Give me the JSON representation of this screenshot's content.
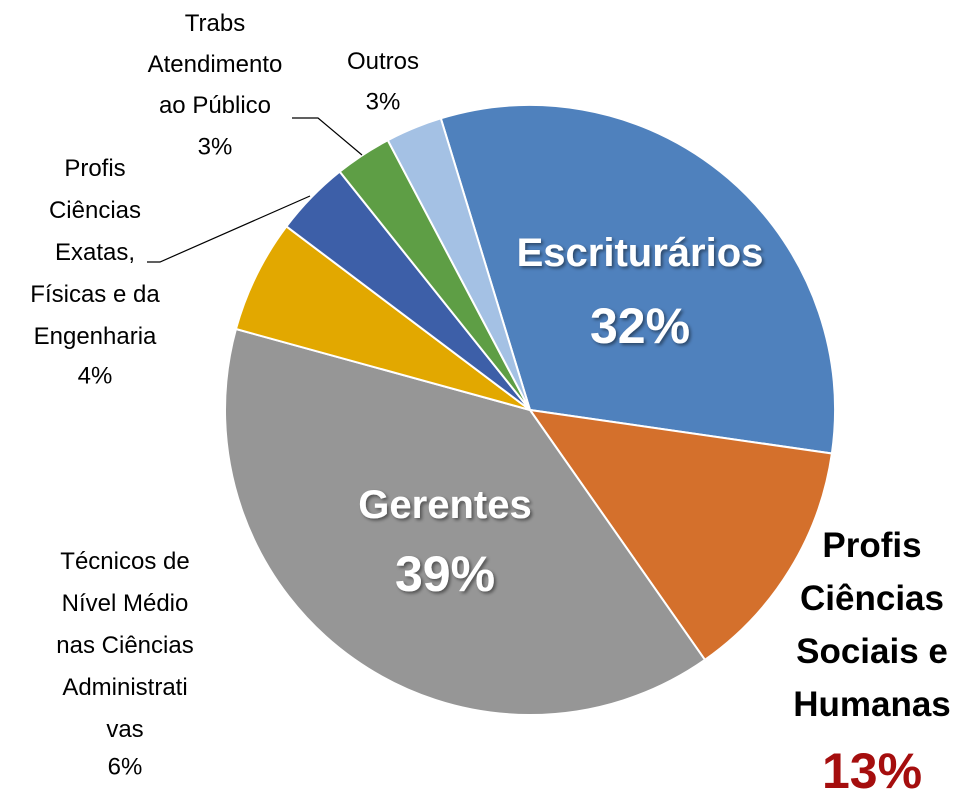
{
  "chart_data": {
    "type": "pie",
    "categories": [
      "Escriturários",
      "Profis\nCiências\nSociais e\nHumanas",
      "Gerentes",
      "Técnicos de\nNível Médio\nnas Ciências\nAdministrati\nvas",
      "Profis\nCiências\nExatas,\nFísicas e da\nEngenharia",
      "Trabs\nAtendimento\nao Público",
      "Outros"
    ],
    "values": [
      32,
      13,
      39,
      6,
      4,
      3,
      3
    ],
    "value_labels": [
      "32%",
      "13%",
      "39%",
      "6%",
      "4%",
      "3%",
      "3%"
    ],
    "colors": [
      "#4f81bd",
      "#d4702c",
      "#969696",
      "#e2a800",
      "#3d5fa8",
      "#5e9e45",
      "#a4c1e4"
    ]
  }
}
